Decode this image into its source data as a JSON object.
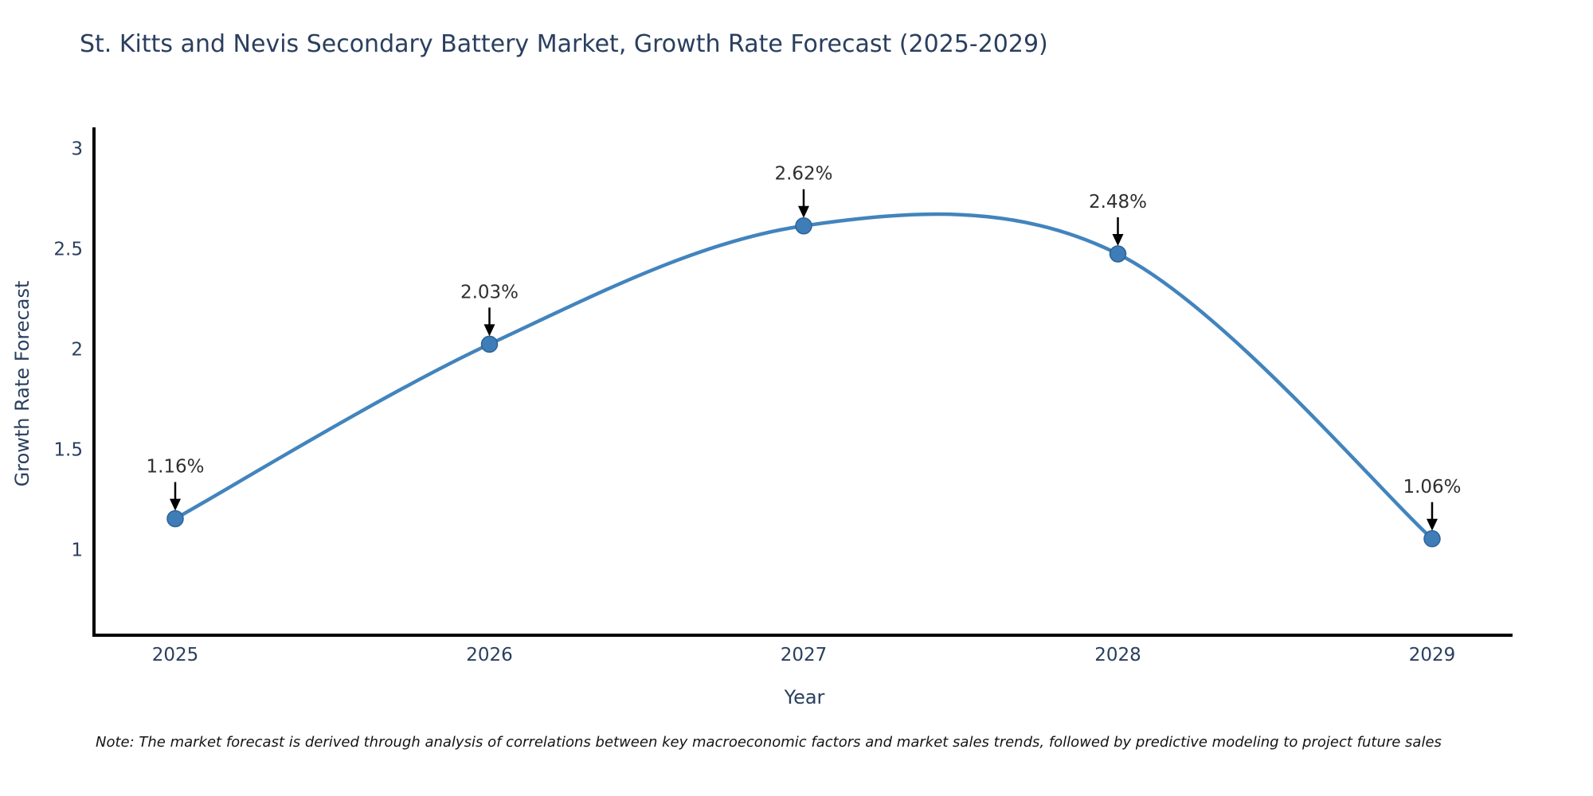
{
  "title": "St. Kitts and Nevis Secondary Battery Market, Growth Rate Forecast (2025-2029)",
  "note": "Note: The market forecast is derived through analysis of correlations between key macroeconomic factors and market sales trends, followed by predictive modeling to project future sales",
  "chart_data": {
    "type": "line",
    "title": "St. Kitts and Nevis Secondary Battery Market, Growth Rate Forecast (2025-2029)",
    "xlabel": "Year",
    "ylabel": "Growth Rate Forecast",
    "x": [
      2025,
      2026,
      2027,
      2028,
      2029
    ],
    "values": [
      1.16,
      2.03,
      2.62,
      2.48,
      1.06
    ],
    "point_labels": [
      "1.16%",
      "2.03%",
      "2.62%",
      "2.48%",
      "1.06%"
    ],
    "xtick_labels": [
      "2025",
      "2026",
      "2027",
      "2028",
      "2029"
    ],
    "yticks": [
      1,
      1.5,
      2,
      2.5,
      3
    ],
    "ytick_labels": [
      "1",
      "1.5",
      "2",
      "2.5",
      "3"
    ],
    "ylim": [
      0.579,
      3.111
    ],
    "line_shape": "spline",
    "grid": false,
    "legend_position": "none",
    "colors": {
      "line": "#4284bd",
      "marker_fill": "#3e7db8",
      "marker_edge": "#2d6396",
      "axis": "#000000",
      "tick_text": "#2a3f5f",
      "annotation_text": "#2f2f2f",
      "arrow": "#000000",
      "title_text": "#2a3f5f",
      "background": "#ffffff"
    }
  }
}
